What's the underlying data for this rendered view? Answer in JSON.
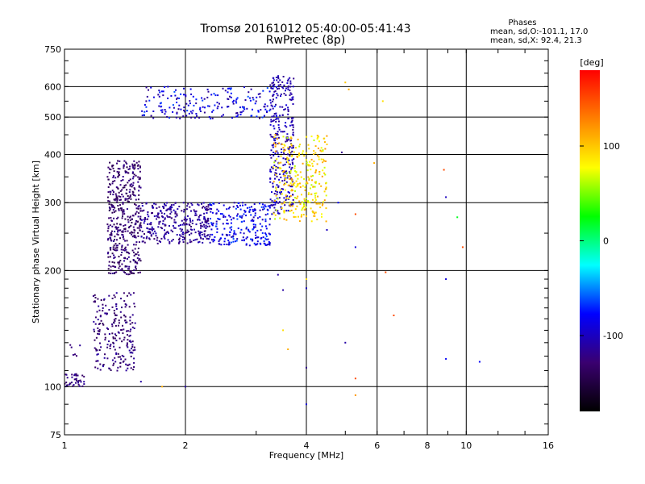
{
  "chart_data": {
    "type": "scatter",
    "title": "Tromsø 20161012 05:40:00-05:41:43",
    "subtitle": "RwPretec (8p)",
    "xlabel": "Frequency [MHz]",
    "ylabel": "Stationary phase Virtual Height [km]",
    "x_scale": "log",
    "y_scale": "log",
    "xlim": [
      1,
      16
    ],
    "ylim": [
      75,
      750
    ],
    "x_ticks": [
      1,
      2,
      4,
      6,
      8,
      10,
      16
    ],
    "y_ticks": [
      75,
      100,
      200,
      300,
      400,
      500,
      600,
      750
    ],
    "grid": true,
    "stats": {
      "header": "Phases",
      "line_o": "mean, sd,O:-101.1, 17.0",
      "line_x": "mean, sd,X:  92.4, 21.3"
    },
    "colorbar": {
      "label": "[deg]",
      "range": [
        -180,
        180
      ],
      "ticks": [
        "100",
        "0",
        "-100"
      ],
      "tick_values": [
        100,
        0,
        -100
      ],
      "colors": [
        "#000000",
        "#3a0070",
        "#0000ff",
        "#00ffff",
        "#00ff00",
        "#ffff00",
        "#ff8000",
        "#ff0000"
      ]
    },
    "trace_clusters": [
      {
        "freq": [
          1.0,
          1.12
        ],
        "height": [
          100,
          108
        ],
        "phase": [
          -140,
          -110
        ],
        "count": 40
      },
      {
        "freq": [
          1.02,
          1.1
        ],
        "height": [
          120,
          130
        ],
        "phase": [
          -130,
          -110
        ],
        "count": 6
      },
      {
        "freq": [
          1.18,
          1.5
        ],
        "height": [
          110,
          175
        ],
        "phase": [
          -140,
          -110
        ],
        "count": 220
      },
      {
        "freq": [
          1.28,
          1.55
        ],
        "height": [
          195,
          385
        ],
        "phase": [
          -145,
          -115
        ],
        "count": 450
      },
      {
        "freq": [
          1.55,
          2.3
        ],
        "height": [
          235,
          300
        ],
        "phase": [
          -130,
          -100
        ],
        "count": 320
      },
      {
        "freq": [
          2.3,
          3.25
        ],
        "height": [
          232,
          300
        ],
        "phase": [
          -110,
          -60
        ],
        "count": 240
      },
      {
        "freq": [
          3.25,
          3.72
        ],
        "height": [
          280,
          640
        ],
        "phase": [
          -120,
          -90
        ],
        "count": 320
      },
      {
        "freq": [
          1.55,
          3.4
        ],
        "height": [
          495,
          600
        ],
        "phase": [
          -120,
          -60
        ],
        "count": 200
      },
      {
        "freq": [
          3.3,
          4.5
        ],
        "height": [
          268,
          450
        ],
        "phase": [
          60,
          120
        ],
        "count": 300
      }
    ],
    "scattered_points": [
      {
        "freq": 5.0,
        "height": 615,
        "phase": 100
      },
      {
        "freq": 5.9,
        "height": 380,
        "phase": 110
      },
      {
        "freq": 6.2,
        "height": 550,
        "phase": 90
      },
      {
        "freq": 8.8,
        "height": 365,
        "phase": 150
      },
      {
        "freq": 8.9,
        "height": 310,
        "phase": -100
      },
      {
        "freq": 9.5,
        "height": 275,
        "phase": 20
      },
      {
        "freq": 9.8,
        "height": 230,
        "phase": 150
      },
      {
        "freq": 5.3,
        "height": 280,
        "phase": 150
      },
      {
        "freq": 6.3,
        "height": 198,
        "phase": 150
      },
      {
        "freq": 6.6,
        "height": 153,
        "phase": 150
      },
      {
        "freq": 5.3,
        "height": 105,
        "phase": 150
      },
      {
        "freq": 5.3,
        "height": 95,
        "phase": 120
      },
      {
        "freq": 8.9,
        "height": 118,
        "phase": -80
      },
      {
        "freq": 10.8,
        "height": 116,
        "phase": -80
      },
      {
        "freq": 8.9,
        "height": 190,
        "phase": -90
      },
      {
        "freq": 5.3,
        "height": 230,
        "phase": -90
      },
      {
        "freq": 4.9,
        "height": 405,
        "phase": -120
      },
      {
        "freq": 5.0,
        "height": 130,
        "phase": -110
      },
      {
        "freq": 4.0,
        "height": 90,
        "phase": -90
      },
      {
        "freq": 4.0,
        "height": 112,
        "phase": -120
      },
      {
        "freq": 3.6,
        "height": 125,
        "phase": 110
      },
      {
        "freq": 3.5,
        "height": 140,
        "phase": 90
      },
      {
        "freq": 4.0,
        "height": 190,
        "phase": 90
      },
      {
        "freq": 4.0,
        "height": 180,
        "phase": -100
      },
      {
        "freq": 3.4,
        "height": 195,
        "phase": -110
      },
      {
        "freq": 3.5,
        "height": 178,
        "phase": -110
      },
      {
        "freq": 4.5,
        "height": 255,
        "phase": -100
      },
      {
        "freq": 5.1,
        "height": 590,
        "phase": 110
      },
      {
        "freq": 1.75,
        "height": 100,
        "phase": 110
      },
      {
        "freq": 2.0,
        "height": 100,
        "phase": -110
      },
      {
        "freq": 1.55,
        "height": 103,
        "phase": -110
      },
      {
        "freq": 4.8,
        "height": 300,
        "phase": -80
      }
    ]
  }
}
